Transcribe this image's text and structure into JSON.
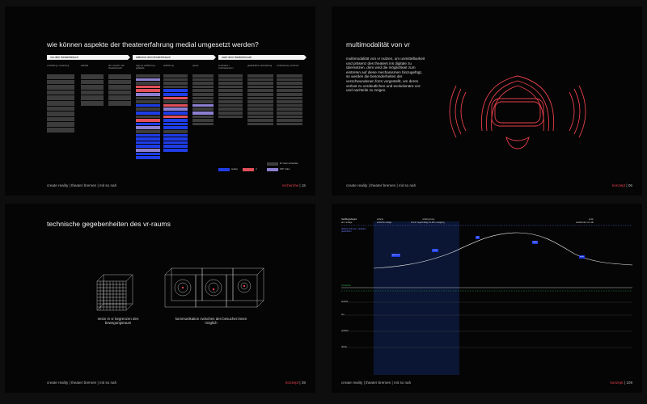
{
  "slide1": {
    "title": "wie können aspekte der theatererfahrung medial umgesetzt werden?",
    "phases": [
      "vor dem theaterbesuch",
      "während dem theaterbesuch",
      "nach dem theaterbesuch"
    ],
    "col_headers": [
      "vorstellung / erwartung",
      "aktivität",
      "der vorsicht / der theaterbesuch",
      "weg zur aufführung / gebäude",
      "aufführung",
      "pause",
      "zuschauer / zuschauerraum",
      "gedankliche nachwirkung",
      "verarbeitung / eindruck"
    ],
    "legend": [
      "analog",
      "vr",
      "Ø / stets vorhanden",
      "360° video"
    ],
    "footer": "create reality | theater bremen | mit so nah",
    "page_label": "recherche",
    "page_number": "| 15"
  },
  "slide2": {
    "title": "multimodalität von vr",
    "body": "multimodalität von vr nutzen, um unmittelbarkeit und präsenz des theaters ins digitale zu übersetzen. dem wird die möglichkeit zum eintreten auf diese mechanismen hinzugefügt, so werden die besonderheiten der verschwundenen form vorgestellt, um deren verlust zu verdeutlichen und evolutionäre vor- und nachteile zu zeigen.",
    "footer": "create reality | theater bremen | mit so nah",
    "page_label": "konzept",
    "page_number": "| 06"
  },
  "slide3": {
    "title": "technische gegebenheiten des vr-raums",
    "caption_left": "netze in vr begrenzen den bewegungsraum",
    "caption_right": "kommunikation zwischen den besucher:innen möglich",
    "footer": "create reality | theater bremen | mit so nah",
    "page_label": "konzept",
    "page_number": "| 39"
  },
  "slide4": {
    "row_header_top": "handlungsbogen",
    "row_header_top_sub": "akt / anlage",
    "phase_labels": [
      "anfang",
      "verlängerung",
      "ende"
    ],
    "phase_sub": [
      "einfache anlage",
      "immer regelmäßig mit dem ausgang",
      "ausblenden vor akt"
    ],
    "left_notes": "fallinformationen / abläufe / geschehen",
    "row_labels": [
      "interaktion",
      "ansicht",
      "ton",
      "position",
      "dichte"
    ],
    "footer": "create reality | theater bremen | mit so nah",
    "page_label": "konzept",
    "page_number": "| 109"
  },
  "colors": {
    "accent_red": "#e6404a",
    "accent_blue": "#1f3de6",
    "accent_purple": "#8d7fd0"
  }
}
